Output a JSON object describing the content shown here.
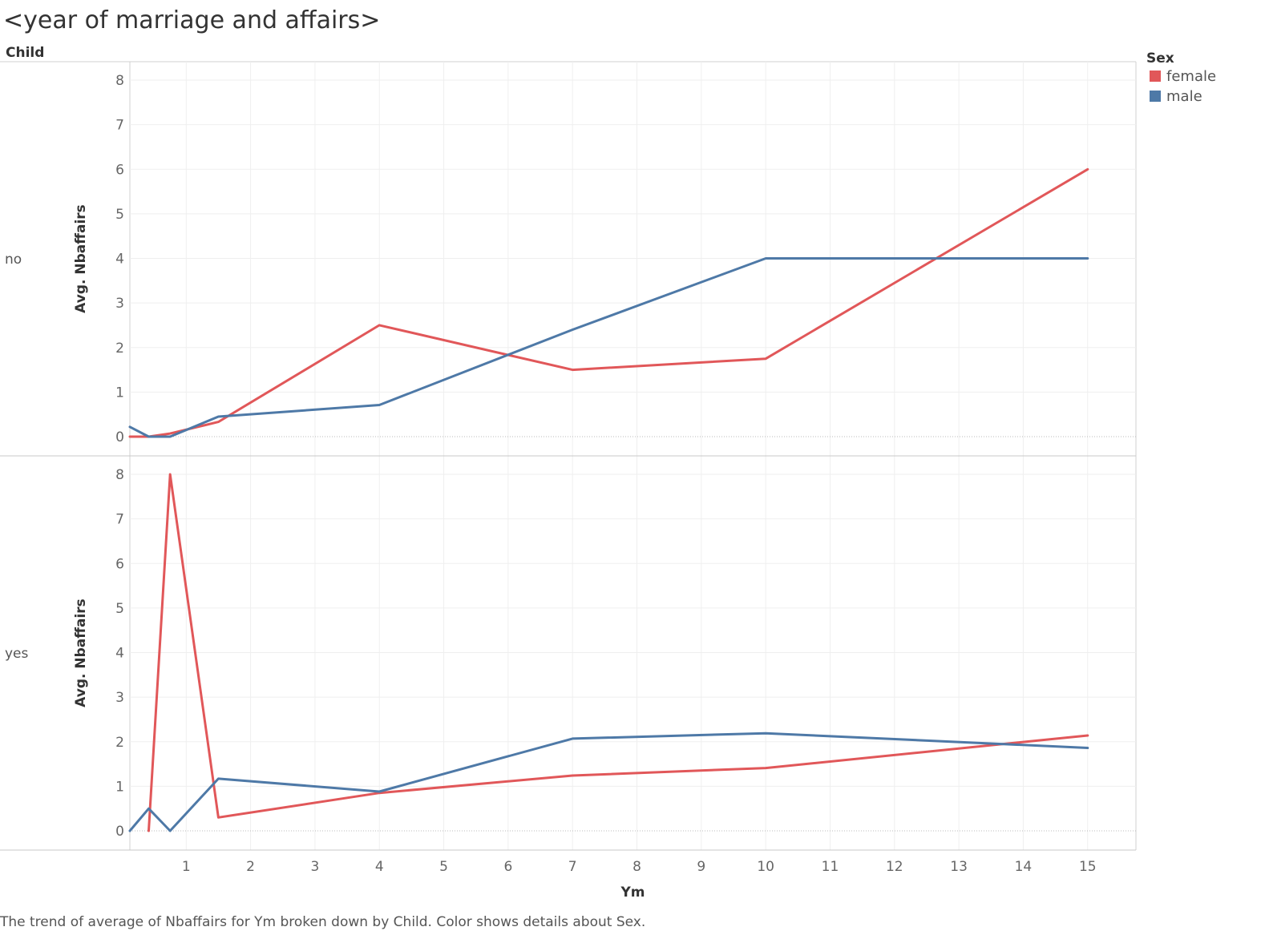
{
  "title": "<year of marriage and affairs>",
  "caption": "The trend of average of Nbaffairs for Ym broken down by Child.  Color shows details about Sex.",
  "chart_data": {
    "type": "line",
    "row_header": "Child",
    "xlabel": "Ym",
    "ylabel": "Avg. Nbaffairs",
    "xlim": [
      0.125,
      15.75
    ],
    "ylim": [
      0,
      8
    ],
    "x_ticks": [
      1,
      2,
      3,
      4,
      5,
      6,
      7,
      8,
      9,
      10,
      11,
      12,
      13,
      14,
      15
    ],
    "y_ticks": [
      0,
      1,
      2,
      3,
      4,
      5,
      6,
      7,
      8
    ],
    "grid": true,
    "legend": {
      "title": "Sex",
      "position": "top-right",
      "entries": [
        {
          "name": "female",
          "color": "#e15759"
        },
        {
          "name": "male",
          "color": "#4e79a7"
        }
      ]
    },
    "panels": [
      {
        "label": "no",
        "series": [
          {
            "name": "female",
            "color": "#e15759",
            "x": [
              0.125,
              0.417,
              0.75,
              1.5,
              4,
              7,
              10,
              15
            ],
            "y": [
              0,
              0,
              0.07,
              0.33,
              2.5,
              1.5,
              1.75,
              6
            ]
          },
          {
            "name": "male",
            "color": "#4e79a7",
            "x": [
              0.125,
              0.417,
              0.75,
              1.5,
              4,
              7,
              10,
              15
            ],
            "y": [
              0.22,
              0,
              0,
              0.45,
              0.71,
              2.4,
              4,
              4
            ]
          }
        ]
      },
      {
        "label": "yes",
        "series": [
          {
            "name": "female",
            "color": "#e15759",
            "x": [
              0.417,
              0.75,
              1.5,
              4,
              7,
              10,
              15
            ],
            "y": [
              0,
              8,
              0.3,
              0.85,
              1.24,
              1.41,
              2.14
            ]
          },
          {
            "name": "male",
            "color": "#4e79a7",
            "x": [
              0.125,
              0.417,
              0.75,
              1.5,
              4,
              7,
              10,
              15
            ],
            "y": [
              0,
              0.5,
              0,
              1.17,
              0.88,
              2.07,
              2.19,
              1.86
            ]
          }
        ]
      }
    ]
  }
}
